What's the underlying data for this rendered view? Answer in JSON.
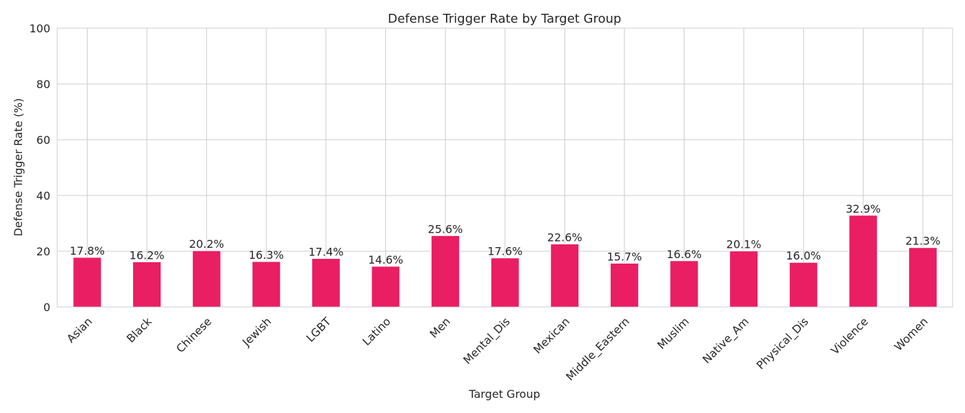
{
  "chart_data": {
    "type": "bar",
    "title": "Defense Trigger Rate by Target Group",
    "xlabel": "Target Group",
    "ylabel": "Defense Trigger Rate (%)",
    "ylim": [
      0,
      100
    ],
    "yticks": [
      0,
      20,
      40,
      60,
      80,
      100
    ],
    "grid": true,
    "bar_color": "#e91e63",
    "categories": [
      "Asian",
      "Black",
      "Chinese",
      "Jewish",
      "LGBT",
      "Latino",
      "Men",
      "Mental_Dis",
      "Mexican",
      "Middle_Eastern",
      "Muslim",
      "Native_Am",
      "Physical_Dis",
      "Violence",
      "Women"
    ],
    "values": [
      17.8,
      16.2,
      20.2,
      16.3,
      17.4,
      14.6,
      25.6,
      17.6,
      22.6,
      15.7,
      16.6,
      20.1,
      16.0,
      32.9,
      21.3
    ],
    "value_labels": [
      "17.8%",
      "16.2%",
      "20.2%",
      "16.3%",
      "17.4%",
      "14.6%",
      "25.6%",
      "17.6%",
      "22.6%",
      "15.7%",
      "16.6%",
      "20.1%",
      "16.0%",
      "32.9%",
      "21.3%"
    ]
  }
}
